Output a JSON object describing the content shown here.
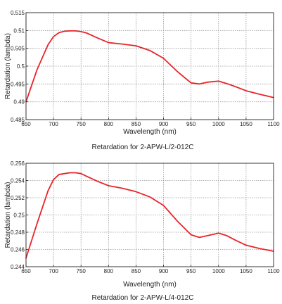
{
  "chart_data": [
    {
      "type": "line",
      "title": "Retardation for 2-APW-L/2-012C",
      "xlabel": "Wavelength (nm)",
      "ylabel": "Retardation (lambda)",
      "xlim": [
        650,
        1100
      ],
      "ylim": [
        0.485,
        0.515
      ],
      "xticks": [
        650,
        700,
        750,
        800,
        850,
        900,
        950,
        1000,
        1050,
        1100
      ],
      "xtick_labels": [
        "650",
        "700",
        "750",
        "800",
        "850",
        "900",
        "950",
        "1000",
        "1050",
        "1100"
      ],
      "yticks": [
        0.485,
        0.49,
        0.495,
        0.5,
        0.505,
        0.51,
        0.515
      ],
      "ytick_labels": [
        "0.485",
        "0.49",
        "0.495",
        "0.5",
        "0.505",
        "0.51",
        "0.515"
      ],
      "grid": true,
      "series": [
        {
          "color": "#e8242a",
          "x": [
            650,
            670,
            690,
            700,
            710,
            720,
            730,
            740,
            750,
            760,
            780,
            800,
            825,
            850,
            875,
            900,
            925,
            950,
            965,
            980,
            1000,
            1015,
            1030,
            1050,
            1075,
            1100
          ],
          "y": [
            0.49,
            0.499,
            0.506,
            0.5083,
            0.5094,
            0.5098,
            0.5099,
            0.5099,
            0.5097,
            0.5093,
            0.5079,
            0.5066,
            0.5062,
            0.5057,
            0.5044,
            0.5022,
            0.4985,
            0.4953,
            0.495,
            0.4955,
            0.4958,
            0.4951,
            0.4943,
            0.4931,
            0.4921,
            0.4912
          ]
        }
      ]
    },
    {
      "type": "line",
      "title": "Retardation for 2-APW-L/4-012C",
      "xlabel": "Wavelength (nm)",
      "ylabel": "Retardation (lambda)",
      "xlim": [
        650,
        1100
      ],
      "ylim": [
        0.244,
        0.256
      ],
      "xticks": [
        650,
        700,
        750,
        800,
        850,
        900,
        950,
        1000,
        1050,
        1100
      ],
      "xtick_labels": [
        "650",
        "700",
        "750",
        "800",
        "850",
        "900",
        "950",
        "1000",
        "1050",
        "1100"
      ],
      "yticks": [
        0.244,
        0.246,
        0.248,
        0.25,
        0.252,
        0.254,
        0.256
      ],
      "ytick_labels": [
        "0.244",
        "0.246",
        "0.248",
        "0.25",
        "0.252",
        "0.254",
        "0.256"
      ],
      "grid": true,
      "series": [
        {
          "color": "#e8242a",
          "x": [
            650,
            670,
            690,
            700,
            710,
            720,
            730,
            740,
            750,
            760,
            780,
            800,
            825,
            850,
            875,
            900,
            925,
            950,
            965,
            980,
            1000,
            1015,
            1030,
            1050,
            1075,
            1100
          ],
          "y": [
            0.245,
            0.249,
            0.2528,
            0.2541,
            0.2547,
            0.2548,
            0.2549,
            0.2549,
            0.2548,
            0.2545,
            0.2539,
            0.2534,
            0.2531,
            0.2527,
            0.2521,
            0.2511,
            0.2493,
            0.2477,
            0.2474,
            0.2476,
            0.2479,
            0.2476,
            0.2471,
            0.2465,
            0.2461,
            0.2458
          ]
        }
      ]
    }
  ]
}
